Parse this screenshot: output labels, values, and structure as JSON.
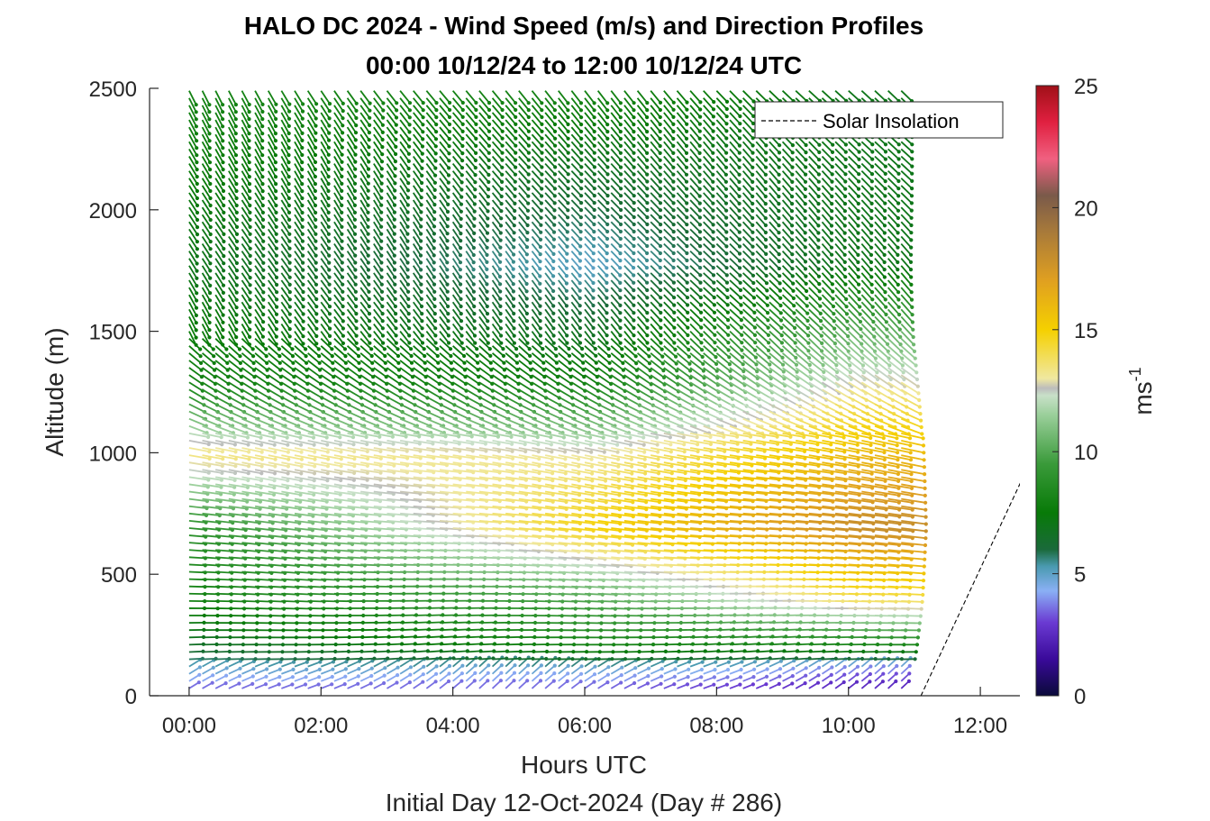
{
  "chart_data": {
    "type": "quiver",
    "title": "HALO DC 2024 - Wind Speed (m/s) and Direction Profiles",
    "subtitle": "00:00 10/12/24 to 12:00 10/12/24  UTC",
    "xlabel": "Hours UTC",
    "xlabel2": "Initial Day 12-Oct-2024 (Day # 286)",
    "ylabel": "Altitude (m)",
    "xlim": [
      -0.6,
      12.6
    ],
    "ylim": [
      0,
      2500
    ],
    "x_ticks": [
      {
        "value": 0,
        "label": "00:00"
      },
      {
        "value": 2,
        "label": "02:00"
      },
      {
        "value": 4,
        "label": "04:00"
      },
      {
        "value": 6,
        "label": "06:00"
      },
      {
        "value": 8,
        "label": "08:00"
      },
      {
        "value": 10,
        "label": "10:00"
      },
      {
        "value": 12,
        "label": "12:00"
      }
    ],
    "y_ticks": [
      {
        "value": 0,
        "label": "0"
      },
      {
        "value": 500,
        "label": "500"
      },
      {
        "value": 1000,
        "label": "1000"
      },
      {
        "value": 1500,
        "label": "1500"
      },
      {
        "value": 2000,
        "label": "2000"
      },
      {
        "value": 2500,
        "label": "2500"
      }
    ],
    "colorbar": {
      "label": "ms-1",
      "label_main": "ms",
      "label_sup": "-1",
      "range": [
        0,
        25
      ],
      "ticks": [
        {
          "value": 0,
          "label": "0"
        },
        {
          "value": 5,
          "label": "5"
        },
        {
          "value": 10,
          "label": "10"
        },
        {
          "value": 15,
          "label": "15"
        },
        {
          "value": 20,
          "label": "20"
        },
        {
          "value": 25,
          "label": "25"
        }
      ],
      "colormap": [
        {
          "v": 0,
          "c": "#0a0a3a"
        },
        {
          "v": 1.5,
          "c": "#3a0a9a"
        },
        {
          "v": 3,
          "c": "#6a3ad2"
        },
        {
          "v": 4.3,
          "c": "#8ab0f5"
        },
        {
          "v": 5.3,
          "c": "#4a9ab0"
        },
        {
          "v": 6.0,
          "c": "#1a6a3a"
        },
        {
          "v": 7.5,
          "c": "#087a08"
        },
        {
          "v": 9.5,
          "c": "#3a9a3a"
        },
        {
          "v": 11.5,
          "c": "#9acf9a"
        },
        {
          "v": 12.3,
          "c": "#c8e0c8"
        },
        {
          "v": 12.6,
          "c": "#bcbcbc"
        },
        {
          "v": 13.0,
          "c": "#f0e8a0"
        },
        {
          "v": 15.0,
          "c": "#f5d000"
        },
        {
          "v": 17.0,
          "c": "#e0a020"
        },
        {
          "v": 19.0,
          "c": "#a87a3a"
        },
        {
          "v": 20.5,
          "c": "#7a5a4a"
        },
        {
          "v": 22.0,
          "c": "#f06080"
        },
        {
          "v": 23.5,
          "c": "#e02040"
        },
        {
          "v": 25.0,
          "c": "#a01018"
        }
      ]
    },
    "wind_field": {
      "time_start": 0,
      "time_end": 10.8,
      "time_step": 0.2,
      "altitude_start": 30,
      "altitude_end": 2500,
      "altitude_step": 30,
      "speed_profile_m_s": [
        {
          "alt": 0,
          "t0": 3,
          "t6": 3,
          "t10": 2
        },
        {
          "alt": 100,
          "t0": 5,
          "t6": 5,
          "t10": 4
        },
        {
          "alt": 200,
          "t0": 6.5,
          "t6": 8,
          "t10": 8
        },
        {
          "alt": 400,
          "t0": 8,
          "t6": 10,
          "t10": 14
        },
        {
          "alt": 700,
          "t0": 9,
          "t6": 15,
          "t10": 18
        },
        {
          "alt": 1000,
          "t0": 13.5,
          "t6": 13,
          "t10": 16
        },
        {
          "alt": 1300,
          "t0": 8,
          "t6": 8,
          "t10": 13
        },
        {
          "alt": 1800,
          "t0": 7,
          "t6": 5,
          "t10": 7
        },
        {
          "alt": 2500,
          "t0": 8,
          "t6": 8,
          "t10": 7
        }
      ]
    },
    "series": [
      {
        "name": "Solar Insolation",
        "x": [
          -0.6,
          11.1,
          12.7
        ],
        "y": [
          0,
          0,
          930
        ]
      }
    ],
    "legend": {
      "placement": "top-right",
      "entries": [
        "Solar Insolation"
      ]
    },
    "grid": false
  }
}
